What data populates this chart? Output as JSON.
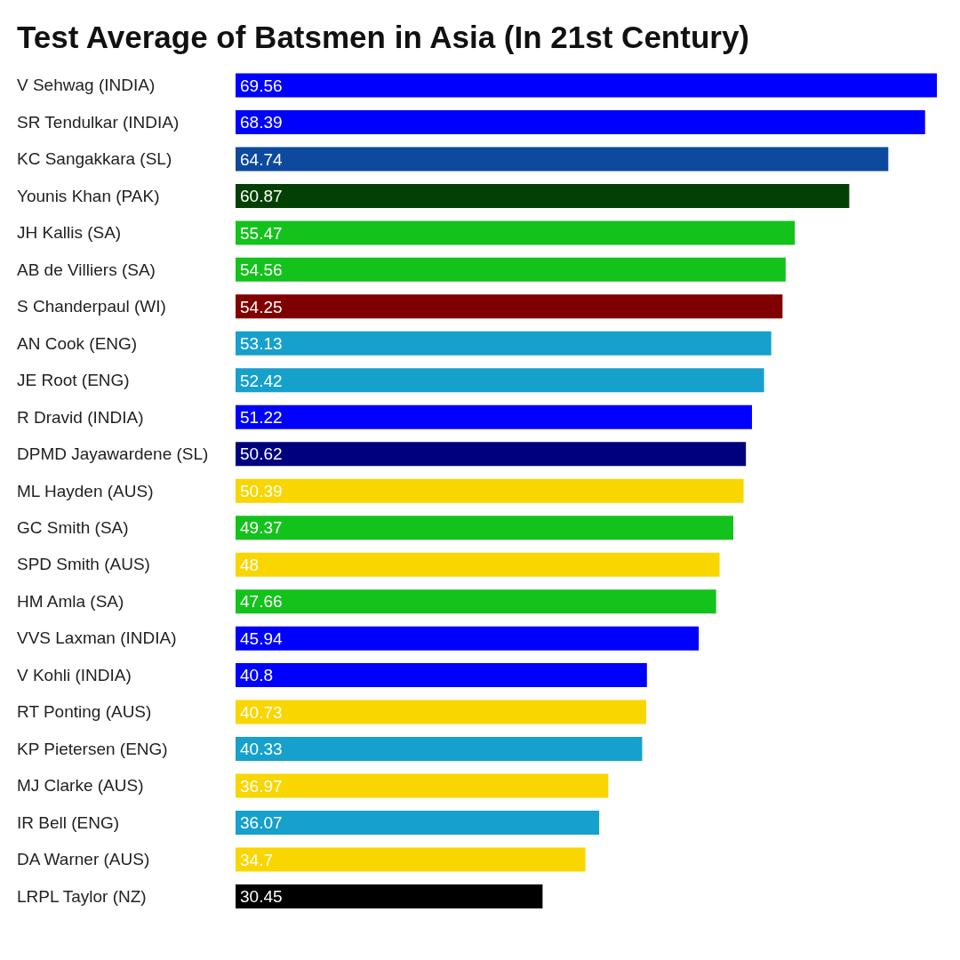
{
  "chart_data": {
    "type": "bar",
    "orientation": "horizontal",
    "title": "Test Average of Batsmen in Asia (In 21st Century)",
    "categories": [
      "V Sehwag (INDIA)",
      "SR Tendulkar (INDIA)",
      "KC Sangakkara (SL)",
      "Younis Khan (PAK)",
      "JH Kallis (SA)",
      "AB de Villiers (SA)",
      "S Chanderpaul (WI)",
      "AN Cook (ENG)",
      "JE Root (ENG)",
      "R Dravid (INDIA)",
      "DPMD Jayawardene (SL)",
      "ML Hayden (AUS)",
      "GC Smith (SA)",
      "SPD Smith (AUS)",
      "HM Amla (SA)",
      "VVS Laxman (INDIA)",
      "V Kohli (INDIA)",
      "RT Ponting (AUS)",
      "KP Pietersen (ENG)",
      "MJ Clarke (AUS)",
      "IR Bell (ENG)",
      "DA Warner (AUS)",
      "LRPL Taylor (NZ)"
    ],
    "values": [
      69.56,
      68.39,
      64.74,
      60.87,
      55.47,
      54.56,
      54.25,
      53.13,
      52.42,
      51.22,
      50.62,
      50.39,
      49.37,
      48,
      47.66,
      45.94,
      40.8,
      40.73,
      40.33,
      36.97,
      36.07,
      34.7,
      30.45
    ],
    "colors": [
      "#0000ff",
      "#0000ff",
      "#0d4a9e",
      "#034005",
      "#14c21c",
      "#14c21c",
      "#800000",
      "#16a0cc",
      "#16a0cc",
      "#0000ff",
      "#00007f",
      "#f9d600",
      "#14c21c",
      "#f9d600",
      "#14c21c",
      "#0000ff",
      "#0000ff",
      "#f9d600",
      "#16a0cc",
      "#f9d600",
      "#16a0cc",
      "#f9d600",
      "#000000"
    ],
    "data_labels": true
  }
}
